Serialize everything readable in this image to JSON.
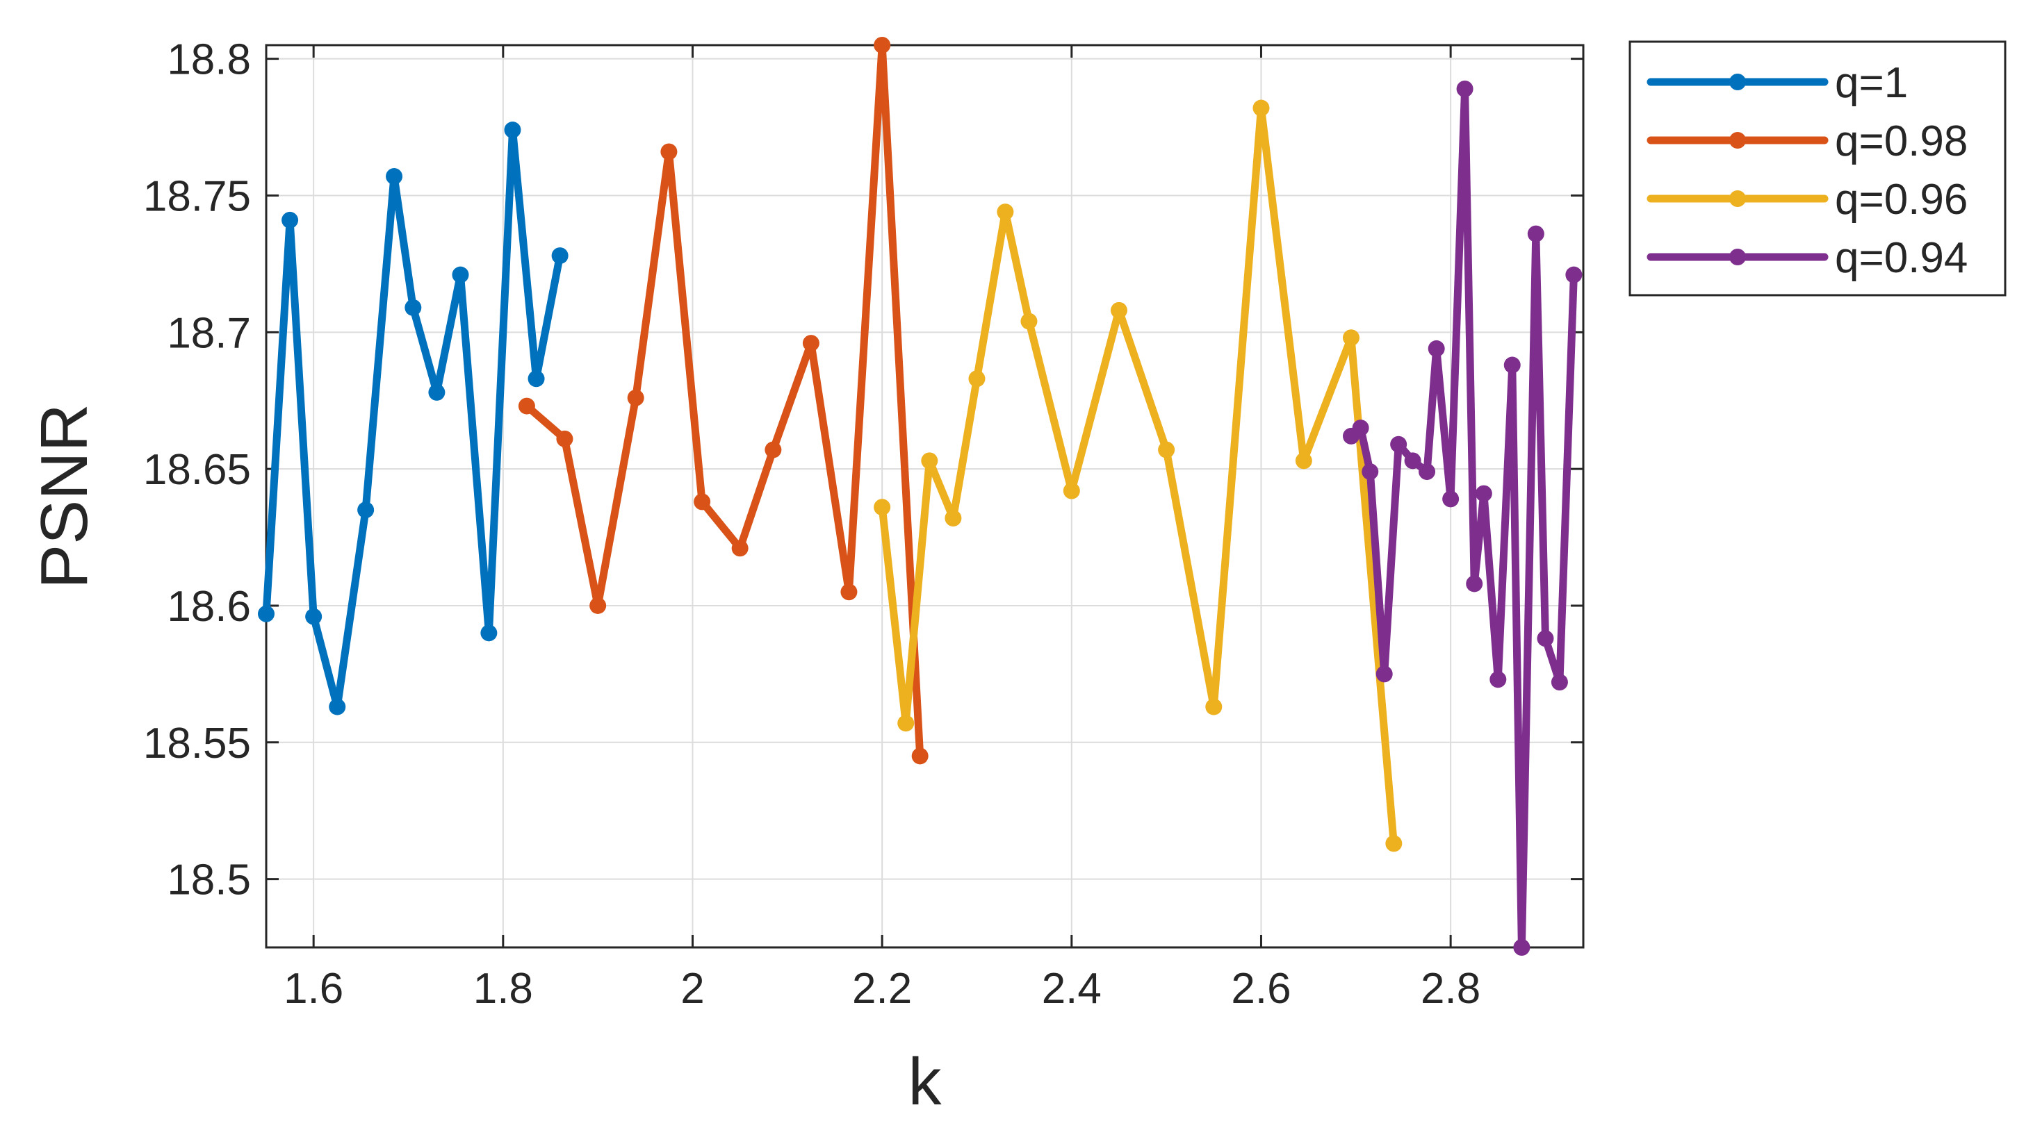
{
  "chart_data": {
    "type": "line",
    "xlabel": "k",
    "ylabel": "PSNR",
    "xlim": [
      1.55,
      2.94
    ],
    "ylim": [
      18.475,
      18.805
    ],
    "grid": true,
    "legend_position": "outside-top-right",
    "xticks": [
      1.6,
      1.8,
      2,
      2.2,
      2.4,
      2.6,
      2.8
    ],
    "xtick_labels": [
      "1.6",
      "1.8",
      "2",
      "2.2",
      "2.4",
      "2.6",
      "2.8"
    ],
    "yticks": [
      18.5,
      18.55,
      18.6,
      18.65,
      18.7,
      18.75,
      18.8
    ],
    "ytick_labels": [
      "18.5",
      "18.55",
      "18.6",
      "18.65",
      "18.7",
      "18.75",
      "18.8"
    ],
    "series": [
      {
        "name": "q=1",
        "color": "#0072BD",
        "x": [
          1.55,
          1.575,
          1.6,
          1.625,
          1.655,
          1.685,
          1.705,
          1.73,
          1.755,
          1.785,
          1.81,
          1.835,
          1.86
        ],
        "y": [
          18.597,
          18.741,
          18.596,
          18.563,
          18.635,
          18.757,
          18.709,
          18.678,
          18.721,
          18.59,
          18.774,
          18.683,
          18.728
        ]
      },
      {
        "name": "q=0.98",
        "color": "#D95319",
        "x": [
          1.825,
          1.865,
          1.9,
          1.94,
          1.975,
          2.01,
          2.05,
          2.085,
          2.125,
          2.165,
          2.2,
          2.24
        ],
        "y": [
          18.673,
          18.661,
          18.6,
          18.676,
          18.766,
          18.638,
          18.621,
          18.657,
          18.696,
          18.605,
          18.805,
          18.545
        ]
      },
      {
        "name": "q=0.96",
        "color": "#EDB120",
        "x": [
          2.2,
          2.225,
          2.25,
          2.275,
          2.3,
          2.33,
          2.355,
          2.4,
          2.45,
          2.5,
          2.55,
          2.6,
          2.645,
          2.695,
          2.74
        ],
        "y": [
          18.636,
          18.557,
          18.653,
          18.632,
          18.683,
          18.744,
          18.704,
          18.642,
          18.708,
          18.657,
          18.563,
          18.782,
          18.653,
          18.698,
          18.513
        ]
      },
      {
        "name": "q=0.94",
        "color": "#7E2F8E",
        "x": [
          2.695,
          2.705,
          2.715,
          2.73,
          2.745,
          2.76,
          2.775,
          2.785,
          2.8,
          2.815,
          2.825,
          2.835,
          2.85,
          2.865,
          2.875,
          2.89,
          2.9,
          2.915,
          2.93
        ],
        "y": [
          18.662,
          18.665,
          18.649,
          18.575,
          18.659,
          18.653,
          18.649,
          18.694,
          18.639,
          18.789,
          18.608,
          18.641,
          18.573,
          18.688,
          18.475,
          18.736,
          18.588,
          18.572,
          18.721
        ]
      }
    ]
  }
}
